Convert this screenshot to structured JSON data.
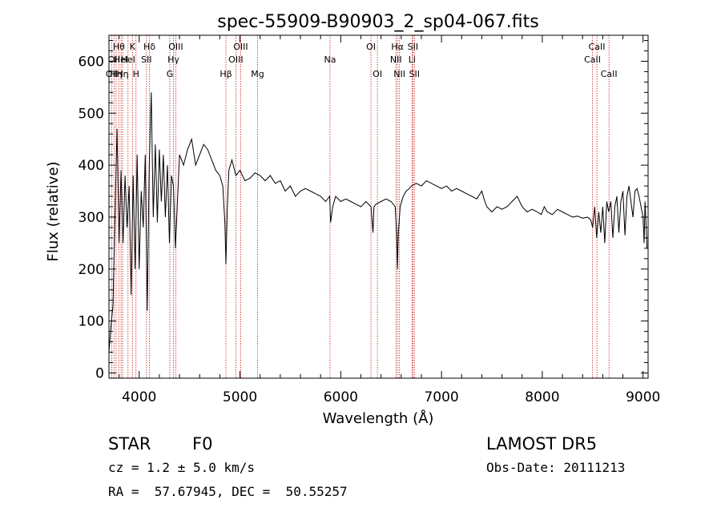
{
  "chart_data": {
    "type": "line",
    "title": "spec-55909-B90903_2_sp04-067.fits",
    "xlabel": "Wavelength (Å)",
    "ylabel": "Flux (relative)",
    "xlim": [
      3700,
      9050
    ],
    "ylim": [
      -10,
      650
    ],
    "xticks": [
      4000,
      5000,
      6000,
      7000,
      8000,
      9000
    ],
    "yticks": [
      0,
      100,
      200,
      300,
      400,
      500,
      600
    ],
    "grid": false,
    "line_color": "#000000",
    "marker_color": "#cc2222",
    "series": [
      {
        "x": [
          3700,
          3720,
          3740,
          3760,
          3780,
          3800,
          3820,
          3840,
          3860,
          3880,
          3900,
          3920,
          3940,
          3960,
          3980,
          4000,
          4020,
          4040,
          4060,
          4080,
          4100,
          4120,
          4140,
          4160,
          4180,
          4200,
          4220,
          4240,
          4260,
          4280,
          4300,
          4320,
          4340,
          4360,
          4380,
          4400,
          4440,
          4480,
          4520,
          4560,
          4600,
          4640,
          4680,
          4720,
          4760,
          4800,
          4830,
          4850,
          4861,
          4875,
          4890,
          4920,
          4960,
          5000,
          5050,
          5100,
          5150,
          5200,
          5250,
          5300,
          5350,
          5400,
          5450,
          5500,
          5550,
          5600,
          5650,
          5700,
          5750,
          5800,
          5850,
          5890,
          5900,
          5920,
          5950,
          6000,
          6050,
          6100,
          6150,
          6200,
          6250,
          6300,
          6320,
          6330,
          6350,
          6400,
          6450,
          6500,
          6540,
          6555,
          6563,
          6572,
          6590,
          6620,
          6650,
          6680,
          6700,
          6750,
          6800,
          6850,
          6900,
          6950,
          7000,
          7050,
          7100,
          7150,
          7200,
          7250,
          7300,
          7350,
          7400,
          7430,
          7450,
          7500,
          7550,
          7600,
          7650,
          7700,
          7750,
          7800,
          7850,
          7900,
          7950,
          7990,
          8020,
          8050,
          8100,
          8150,
          8200,
          8250,
          8300,
          8350,
          8400,
          8450,
          8480,
          8500,
          8520,
          8540,
          8560,
          8580,
          8600,
          8620,
          8640,
          8660,
          8680,
          8700,
          8720,
          8740,
          8760,
          8780,
          8800,
          8820,
          8840,
          8860,
          8880,
          8900,
          8920,
          8940,
          8960,
          8980,
          9000,
          9010,
          9020,
          9040
        ],
        "y": [
          40,
          90,
          130,
          300,
          470,
          250,
          390,
          250,
          380,
          280,
          360,
          150,
          380,
          200,
          420,
          200,
          350,
          280,
          420,
          120,
          400,
          540,
          300,
          440,
          290,
          430,
          330,
          420,
          300,
          400,
          250,
          380,
          360,
          240,
          330,
          420,
          400,
          430,
          450,
          400,
          420,
          440,
          430,
          410,
          390,
          380,
          360,
          290,
          210,
          320,
          390,
          410,
          380,
          390,
          370,
          375,
          385,
          380,
          370,
          380,
          365,
          370,
          350,
          360,
          340,
          350,
          355,
          350,
          345,
          340,
          330,
          340,
          290,
          320,
          340,
          330,
          335,
          330,
          325,
          320,
          330,
          320,
          270,
          320,
          325,
          330,
          335,
          330,
          320,
          270,
          200,
          270,
          320,
          340,
          350,
          355,
          360,
          365,
          360,
          370,
          365,
          360,
          355,
          360,
          350,
          355,
          350,
          345,
          340,
          335,
          350,
          330,
          320,
          310,
          320,
          315,
          320,
          330,
          340,
          320,
          310,
          315,
          310,
          305,
          320,
          310,
          305,
          315,
          310,
          305,
          300,
          302,
          298,
          300,
          295,
          280,
          320,
          260,
          310,
          270,
          320,
          250,
          330,
          310,
          330,
          260,
          320,
          340,
          270,
          330,
          350,
          265,
          340,
          360,
          330,
          300,
          350,
          355,
          340,
          320,
          300,
          250,
          330,
          240
        ]
      }
    ],
    "lines": [
      {
        "wl": 3727,
        "label": "OII",
        "row": 3
      },
      {
        "wl": 3750,
        "label": "OII",
        "row": 2
      },
      {
        "wl": 3771,
        "label": "Hη",
        "row": 3
      },
      {
        "wl": 3798,
        "label": "Hθ",
        "row": 1
      },
      {
        "wl": 3820,
        "label": "HeI",
        "row": 2
      },
      {
        "wl": 3835,
        "label": "Hη",
        "row": 3
      },
      {
        "wl": 3889,
        "label": "HeI",
        "row": 2
      },
      {
        "wl": 3933,
        "label": "K",
        "row": 1
      },
      {
        "wl": 3968,
        "label": "H",
        "row": 3
      },
      {
        "wl": 4072,
        "label": "SII",
        "row": 2
      },
      {
        "wl": 4102,
        "label": "Hδ",
        "row": 1
      },
      {
        "wl": 4304,
        "label": "G",
        "row": 3
      },
      {
        "wl": 4340,
        "label": "Hγ",
        "row": 2
      },
      {
        "wl": 4363,
        "label": "OIII",
        "row": 1
      },
      {
        "wl": 4861,
        "label": "Hβ",
        "row": 3
      },
      {
        "wl": 4959,
        "label": "OIII",
        "row": 2
      },
      {
        "wl": 5007,
        "label": "OIII",
        "row": 1
      },
      {
        "wl": 5175,
        "label": "Mg",
        "row": 3
      },
      {
        "wl": 5894,
        "label": "Na",
        "row": 2
      },
      {
        "wl": 6300,
        "label": "OI",
        "row": 1
      },
      {
        "wl": 6364,
        "label": "OI",
        "row": 3
      },
      {
        "wl": 6548,
        "label": "NII",
        "row": 2
      },
      {
        "wl": 6563,
        "label": "Hα",
        "row": 1
      },
      {
        "wl": 6583,
        "label": "NII",
        "row": 3
      },
      {
        "wl": 6708,
        "label": "Li",
        "row": 2
      },
      {
        "wl": 6716,
        "label": "SII",
        "row": 1
      },
      {
        "wl": 6731,
        "label": "SII",
        "row": 3
      },
      {
        "wl": 8498,
        "label": "CaII",
        "row": 2
      },
      {
        "wl": 8542,
        "label": "CaII",
        "row": 1
      },
      {
        "wl": 8662,
        "label": "CaII",
        "row": 3
      }
    ]
  },
  "info": {
    "class": "STAR",
    "subclass": "F0",
    "survey": "LAMOST DR5",
    "cz": "cz = 1.2 ± 5.0 km/s",
    "obs_date": "Obs-Date: 20111213",
    "radec": "RA =  57.67945, DEC =  50.55257"
  }
}
